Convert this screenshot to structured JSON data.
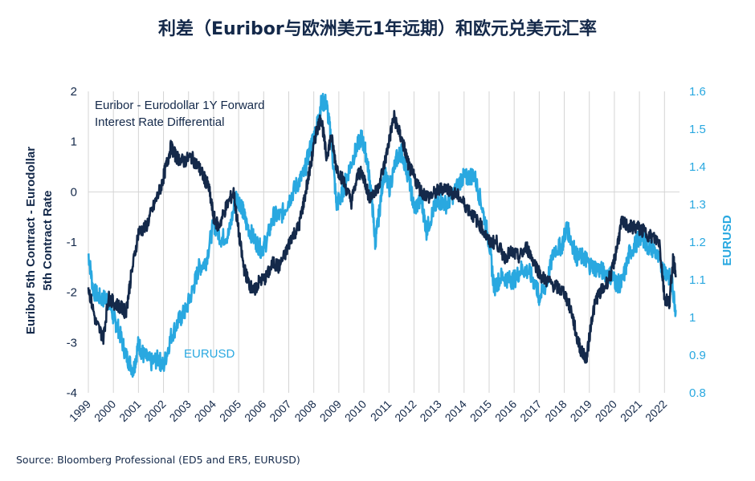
{
  "page": {
    "title": "利差（Euribor与欧洲美元1年远期）和欧元兑美元汇率",
    "source": "Source: Bloomberg Professional (ED5 and ER5, EURUSD)"
  },
  "colors": {
    "navy": "#14294a",
    "light_blue": "#29a8e0",
    "grid": "#d4d4d4"
  },
  "chart_data": {
    "type": "line",
    "annotation_dark": [
      "Euribor - Eurodollar 1Y Forward",
      "Interest Rate Differential"
    ],
    "annotation_light": "EURUSD",
    "y_left": {
      "label_lines": [
        "Euribor 5th Contract - Eurodollar",
        "5th Contract Rate"
      ],
      "ylim": [
        -4,
        2
      ],
      "ticks": [
        2,
        1,
        0,
        -1,
        -2,
        -3,
        -4
      ]
    },
    "y_right": {
      "label": "EURUSD",
      "ylim": [
        0.8,
        1.6
      ],
      "ticks": [
        "1.6",
        "1.5",
        "1.4",
        "1.3",
        "1.2",
        "1.1",
        "1",
        "0.9",
        "0.8"
      ]
    },
    "x": {
      "labels": [
        "1999",
        "2000",
        "2001",
        "2002",
        "2003",
        "2004",
        "2005",
        "2006",
        "2007",
        "2008",
        "2009",
        "2010",
        "2011",
        "2012",
        "2013",
        "2014",
        "2015",
        "2016",
        "2017",
        "2018",
        "2019",
        "2020",
        "2021",
        "2022"
      ],
      "range": [
        1999.0,
        2022.6
      ]
    },
    "series": [
      {
        "axis": "left",
        "color": "#14294a",
        "x": [
          1999.0,
          1999.3,
          1999.6,
          1999.8,
          2000.0,
          2000.3,
          2000.5,
          2000.7,
          2001.0,
          2001.3,
          2001.6,
          2001.9,
          2002.1,
          2002.3,
          2002.5,
          2002.8,
          2003.1,
          2003.4,
          2003.6,
          2003.8,
          2004.0,
          2004.2,
          2004.5,
          2004.8,
          2005.0,
          2005.2,
          2005.4,
          2005.6,
          2005.8,
          2006.1,
          2006.4,
          2006.6,
          2006.9,
          2007.1,
          2007.4,
          2007.6,
          2007.9,
          2008.1,
          2008.3,
          2008.5,
          2008.7,
          2008.9,
          2009.2,
          2009.5,
          2009.8,
          2010.0,
          2010.2,
          2010.5,
          2010.8,
          2011.0,
          2011.2,
          2011.4,
          2011.6,
          2011.8,
          2012.0,
          2012.3,
          2012.6,
          2012.9,
          2013.2,
          2013.5,
          2013.8,
          2014.1,
          2014.4,
          2014.7,
          2015.0,
          2015.3,
          2015.6,
          2015.9,
          2016.2,
          2016.5,
          2016.8,
          2017.1,
          2017.4,
          2017.7,
          2018.0,
          2018.3,
          2018.5,
          2018.7,
          2018.9,
          2019.1,
          2019.3,
          2019.6,
          2019.9,
          2020.1,
          2020.3,
          2020.6,
          2020.9,
          2021.2,
          2021.5,
          2021.8,
          2022.0,
          2022.2,
          2022.35,
          2022.45
        ],
        "values": [
          -1.9,
          -2.6,
          -2.9,
          -2.1,
          -2.2,
          -2.3,
          -2.4,
          -1.7,
          -0.8,
          -0.7,
          -0.3,
          0.1,
          0.5,
          0.9,
          0.7,
          0.6,
          0.7,
          0.5,
          0.3,
          0.1,
          -0.5,
          -0.7,
          -0.3,
          0.0,
          -0.8,
          -1.5,
          -1.8,
          -2.0,
          -1.8,
          -1.7,
          -1.4,
          -1.5,
          -1.2,
          -0.9,
          -0.7,
          -0.2,
          0.6,
          1.2,
          1.5,
          0.7,
          1.1,
          0.5,
          0.2,
          -0.2,
          0.4,
          0.3,
          -0.1,
          0.0,
          0.5,
          1.0,
          1.5,
          1.2,
          0.9,
          0.5,
          0.3,
          0.0,
          -0.1,
          0.0,
          0.1,
          0.0,
          -0.1,
          -0.3,
          -0.5,
          -0.7,
          -1.0,
          -1.0,
          -1.3,
          -1.2,
          -1.3,
          -1.1,
          -1.4,
          -1.7,
          -1.8,
          -1.9,
          -2.0,
          -2.4,
          -2.9,
          -3.2,
          -3.3,
          -2.5,
          -2.1,
          -1.9,
          -1.6,
          -1.1,
          -0.6,
          -0.7,
          -0.7,
          -0.8,
          -0.9,
          -1.0,
          -2.1,
          -2.2,
          -1.3,
          -1.7
        ]
      },
      {
        "axis": "right",
        "color": "#29a8e0",
        "x": [
          1999.0,
          1999.2,
          1999.5,
          1999.8,
          2000.0,
          2000.2,
          2000.5,
          2000.8,
          2001.0,
          2001.2,
          2001.5,
          2001.8,
          2002.0,
          2002.3,
          2002.6,
          2002.9,
          2003.2,
          2003.4,
          2003.7,
          2004.0,
          2004.3,
          2004.6,
          2004.9,
          2005.1,
          2005.3,
          2005.6,
          2005.9,
          2006.1,
          2006.4,
          2006.7,
          2007.0,
          2007.3,
          2007.6,
          2007.9,
          2008.1,
          2008.3,
          2008.5,
          2008.7,
          2008.9,
          2009.1,
          2009.3,
          2009.6,
          2009.9,
          2010.1,
          2010.3,
          2010.45,
          2010.6,
          2010.8,
          2011.0,
          2011.3,
          2011.5,
          2011.8,
          2012.0,
          2012.3,
          2012.5,
          2012.8,
          2013.0,
          2013.3,
          2013.6,
          2013.9,
          2014.1,
          2014.4,
          2014.7,
          2015.0,
          2015.2,
          2015.5,
          2015.8,
          2016.0,
          2016.3,
          2016.6,
          2016.9,
          2017.0,
          2017.3,
          2017.6,
          2017.9,
          2018.1,
          2018.3,
          2018.5,
          2018.8,
          2019.0,
          2019.3,
          2019.6,
          2019.9,
          2020.1,
          2020.3,
          2020.6,
          2020.9,
          2021.1,
          2021.3,
          2021.6,
          2021.9,
          2022.1,
          2022.3,
          2022.45
        ],
        "values": [
          1.17,
          1.07,
          1.05,
          1.05,
          1.0,
          0.97,
          0.9,
          0.86,
          0.93,
          0.9,
          0.88,
          0.89,
          0.87,
          0.95,
          0.99,
          1.02,
          1.08,
          1.13,
          1.15,
          1.25,
          1.21,
          1.22,
          1.32,
          1.3,
          1.25,
          1.21,
          1.18,
          1.2,
          1.27,
          1.27,
          1.31,
          1.35,
          1.38,
          1.46,
          1.5,
          1.57,
          1.57,
          1.47,
          1.3,
          1.32,
          1.37,
          1.43,
          1.48,
          1.43,
          1.33,
          1.2,
          1.27,
          1.39,
          1.34,
          1.42,
          1.44,
          1.37,
          1.29,
          1.31,
          1.23,
          1.29,
          1.31,
          1.3,
          1.33,
          1.37,
          1.37,
          1.38,
          1.3,
          1.2,
          1.08,
          1.11,
          1.1,
          1.1,
          1.13,
          1.12,
          1.08,
          1.05,
          1.09,
          1.18,
          1.19,
          1.24,
          1.2,
          1.16,
          1.16,
          1.14,
          1.13,
          1.12,
          1.11,
          1.09,
          1.09,
          1.17,
          1.2,
          1.22,
          1.19,
          1.18,
          1.13,
          1.12,
          1.09,
          1.02
        ]
      }
    ]
  }
}
